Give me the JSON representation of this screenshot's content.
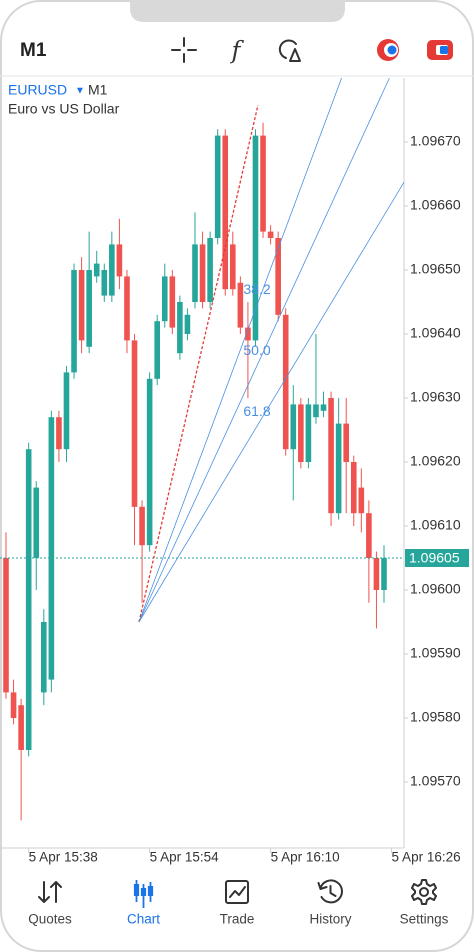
{
  "header": {
    "timeframe": "M1"
  },
  "chart_data": {
    "type": "candlestick",
    "symbol": "EURUSD",
    "timeframe": "M1",
    "description": "Euro vs US Dollar",
    "up_color": "#26a69a",
    "down_color": "#ef5350",
    "open": [
      1.09605,
      1.09584,
      1.09582,
      1.09575,
      1.09605,
      1.09584,
      1.09586,
      1.09627,
      1.09622,
      1.09634,
      1.0965,
      1.09638,
      1.09649,
      1.09646,
      1.09646,
      1.09654,
      1.09649,
      1.09639,
      1.09613,
      1.09607,
      1.09633,
      1.09642,
      1.09649,
      1.09637,
      1.0964,
      1.09645,
      1.09654,
      1.09645,
      1.09655,
      1.09671,
      1.09654,
      1.09648,
      1.09641,
      1.09639,
      1.09671,
      1.09656,
      1.09655,
      1.09643,
      1.09622,
      1.09629,
      1.0962,
      1.09627,
      1.09628,
      1.0963,
      1.09612,
      1.09626,
      1.0962,
      1.09616,
      1.09612,
      1.09605,
      1.096
    ],
    "high": [
      1.09609,
      1.09586,
      1.09583,
      1.09623,
      1.09617,
      1.09597,
      1.09628,
      1.09628,
      1.09635,
      1.09651,
      1.09652,
      1.09656,
      1.09653,
      1.09651,
      1.09656,
      1.09658,
      1.0965,
      1.0964,
      1.09614,
      1.09634,
      1.09643,
      1.09651,
      1.0965,
      1.09646,
      1.09644,
      1.09659,
      1.09656,
      1.09656,
      1.09672,
      1.09672,
      1.09656,
      1.09649,
      1.09645,
      1.09672,
      1.09673,
      1.09657,
      1.09656,
      1.09644,
      1.09632,
      1.0963,
      1.0963,
      1.0964,
      1.09631,
      1.09631,
      1.0963,
      1.0963,
      1.09621,
      1.09619,
      1.09614,
      1.09606,
      1.09607
    ],
    "low": [
      1.09583,
      1.09579,
      1.09564,
      1.09574,
      1.096,
      1.09582,
      1.09584,
      1.0962,
      1.0962,
      1.09633,
      1.09637,
      1.09637,
      1.09648,
      1.09645,
      1.09645,
      1.09647,
      1.09637,
      1.09607,
      1.09598,
      1.09606,
      1.09632,
      1.09641,
      1.0964,
      1.09636,
      1.09639,
      1.09644,
      1.09644,
      1.09644,
      1.09654,
      1.09646,
      1.09646,
      1.0964,
      1.0963,
      1.09638,
      1.09655,
      1.09654,
      1.09642,
      1.09621,
      1.09614,
      1.09619,
      1.09619,
      1.09626,
      1.09627,
      1.0961,
      1.09611,
      1.09612,
      1.0961,
      1.09609,
      1.09598,
      1.09594,
      1.09598
    ],
    "close": [
      1.09584,
      1.0958,
      1.09575,
      1.09622,
      1.09616,
      1.09595,
      1.09627,
      1.09622,
      1.09634,
      1.0965,
      1.09639,
      1.0965,
      1.09651,
      1.0965,
      1.09654,
      1.09649,
      1.09639,
      1.09613,
      1.09607,
      1.09633,
      1.09642,
      1.09649,
      1.09641,
      1.09645,
      1.09643,
      1.09654,
      1.09645,
      1.09655,
      1.09671,
      1.09647,
      1.09647,
      1.09641,
      1.09639,
      1.09671,
      1.09656,
      1.09655,
      1.09643,
      1.09622,
      1.09629,
      1.0962,
      1.09629,
      1.09629,
      1.09629,
      1.09612,
      1.09626,
      1.0962,
      1.09612,
      1.09612,
      1.09605,
      1.096,
      1.09605
    ],
    "ylim": [
      1.0956,
      1.0968
    ],
    "yticks": [
      {
        "value": 1.0967,
        "label": "1.09670"
      },
      {
        "value": 1.0966,
        "label": "1.09660"
      },
      {
        "value": 1.0965,
        "label": "1.09650"
      },
      {
        "value": 1.0964,
        "label": "1.09640"
      },
      {
        "value": 1.0963,
        "label": "1.09630"
      },
      {
        "value": 1.0962,
        "label": "1.09620"
      },
      {
        "value": 1.0961,
        "label": "1.09610"
      },
      {
        "value": 1.096,
        "label": "1.09600"
      },
      {
        "value": 1.0959,
        "label": "1.09590"
      },
      {
        "value": 1.0958,
        "label": "1.09580"
      },
      {
        "value": 1.0957,
        "label": "1.09570"
      }
    ],
    "xticks": [
      "5 Apr 15:38",
      "5 Apr 15:54",
      "5 Apr 16:10",
      "5 Apr 16:26"
    ],
    "current_price": 1.09605,
    "current_price_color": "#26a69a",
    "fib_levels": [
      38.2,
      {
        "value": 50,
        "label": "50.0"
      },
      61.8
    ],
    "fib_color": "#4a90e2",
    "trend_color": "#e53935"
  },
  "nav": {
    "items": [
      "Quotes",
      "Chart",
      "Trade",
      "History",
      "Settings"
    ],
    "active": "Chart",
    "active_color": "#1a73e8"
  }
}
